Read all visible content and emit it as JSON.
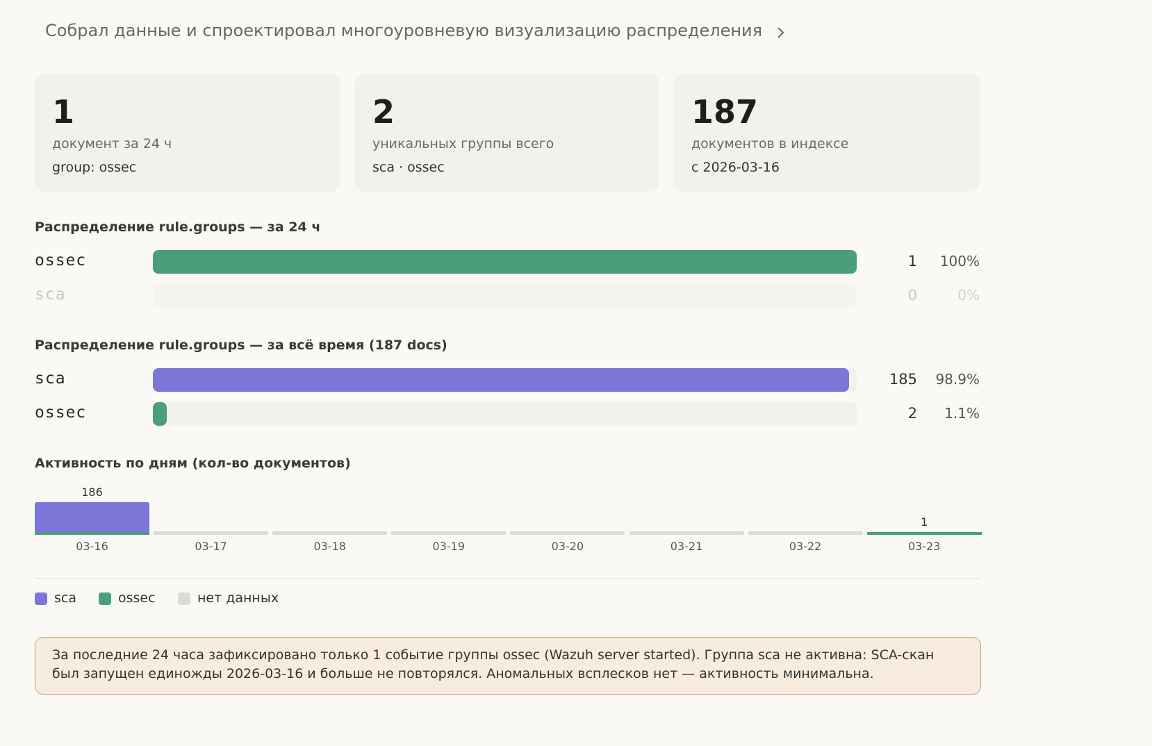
{
  "header": {
    "title": "Собрал данные и спроектировал многоуровневую визуализацию распределения"
  },
  "cards": [
    {
      "value": 1,
      "label": "документ за 24 ч",
      "note": "group: ossec"
    },
    {
      "value": 2,
      "label": "уникальных группы всего",
      "note": "sca · ossec"
    },
    {
      "value": 187,
      "label": "документов в индексе",
      "note": "с 2026-03-16"
    }
  ],
  "distributions": [
    {
      "title": "Распределение rule.groups — за 24 ч",
      "rows": [
        {
          "name": "ossec",
          "color": "#4a9e78",
          "count": 1,
          "percent": 100,
          "percent_label": "100%"
        },
        {
          "name": "sca",
          "color": "#7b76d8",
          "count": 0,
          "percent": 0,
          "percent_label": "0%"
        }
      ]
    },
    {
      "title": "Распределение rule.groups — за всё время (187 docs)",
      "rows": [
        {
          "name": "sca",
          "color": "#7b76d8",
          "count": 185,
          "percent": 98.9,
          "percent_label": "98.9%"
        },
        {
          "name": "ossec",
          "color": "#4a9e78",
          "count": 2,
          "percent": 1.1,
          "percent_label": "1.1%"
        }
      ]
    }
  ],
  "chart_data": {
    "type": "bar",
    "title": "Активность по дням (кол-во документов)",
    "categories": [
      "03-16",
      "03-17",
      "03-18",
      "03-19",
      "03-20",
      "03-21",
      "03-22",
      "03-23"
    ],
    "series": [
      {
        "name": "sca",
        "color": "#7b76d8",
        "values": [
          185,
          0,
          0,
          0,
          0,
          0,
          0,
          0
        ]
      },
      {
        "name": "ossec",
        "color": "#4a9e78",
        "values": [
          1,
          0,
          0,
          0,
          0,
          0,
          0,
          1
        ]
      }
    ],
    "totals": [
      186,
      null,
      null,
      null,
      null,
      null,
      null,
      1
    ],
    "no_data": {
      "name": "нет данных",
      "color": "#dcdad5"
    }
  },
  "note": "За последние 24 часа зафиксировано только 1 событие группы ossec (Wazuh server started). Группа sca не активна: SCA-скан был запущен единожды 2026-03-16 и больше не повторялся. Аномальных всплесков нет — активность минимальна."
}
